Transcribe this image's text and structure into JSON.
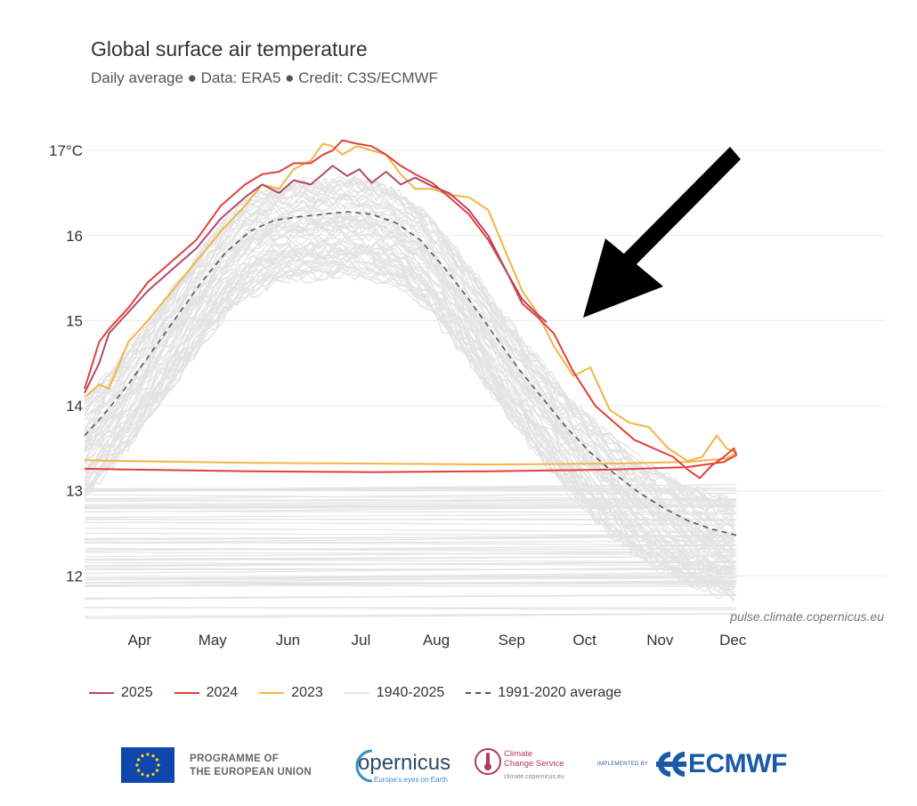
{
  "chart_data": {
    "type": "line",
    "title": "Global surface air temperature",
    "subtitle": "Daily average ● Data: ERA5 ● Credit: C3S/ECMWF",
    "xlabel": "",
    "ylabel": "",
    "x_tick_labels": [
      "Apr",
      "May",
      "Jun",
      "Jul",
      "Aug",
      "Sep",
      "Oct",
      "Nov",
      "Dec"
    ],
    "y_tick_labels": [
      "17°C",
      "16",
      "15",
      "14",
      "13",
      "12"
    ],
    "y_ticks": [
      17,
      16,
      15,
      14,
      13,
      12
    ],
    "ylim": [
      11.45,
      17.2
    ],
    "xlim_day_of_year": [
      82,
      355
    ],
    "grid": true,
    "legend_position": "bottom-left",
    "watermark": "pulse.climate.copernicus.eu",
    "series": [
      {
        "name": "2025",
        "color": "#b5476a",
        "points": [
          [
            82,
            14.15
          ],
          [
            88,
            14.5
          ],
          [
            92,
            14.85
          ],
          [
            100,
            15.1
          ],
          [
            108,
            15.35
          ],
          [
            118,
            15.6
          ],
          [
            128,
            15.85
          ],
          [
            138,
            16.2
          ],
          [
            148,
            16.45
          ],
          [
            155,
            16.6
          ],
          [
            162,
            16.5
          ],
          [
            168,
            16.65
          ],
          [
            175,
            16.6
          ],
          [
            180,
            16.72
          ],
          [
            184,
            16.82
          ],
          [
            190,
            16.7
          ],
          [
            195,
            16.78
          ],
          [
            200,
            16.62
          ],
          [
            206,
            16.75
          ],
          [
            212,
            16.6
          ],
          [
            218,
            16.68
          ],
          [
            225,
            16.58
          ],
          [
            232,
            16.5
          ],
          [
            240,
            16.3
          ],
          [
            248,
            16.0
          ],
          [
            256,
            15.55
          ],
          [
            262,
            15.25
          ],
          [
            268,
            15.08
          ],
          [
            272,
            14.98
          ]
        ]
      },
      {
        "name": "2024",
        "color": "#e0403c",
        "points": [
          [
            82,
            14.2
          ],
          [
            88,
            14.75
          ],
          [
            92,
            14.9
          ],
          [
            100,
            15.15
          ],
          [
            108,
            15.45
          ],
          [
            118,
            15.7
          ],
          [
            128,
            15.95
          ],
          [
            138,
            16.35
          ],
          [
            148,
            16.6
          ],
          [
            155,
            16.72
          ],
          [
            162,
            16.75
          ],
          [
            168,
            16.85
          ],
          [
            175,
            16.85
          ],
          [
            180,
            16.95
          ],
          [
            184,
            17.0
          ],
          [
            188,
            17.12
          ],
          [
            194,
            17.08
          ],
          [
            200,
            17.05
          ],
          [
            206,
            16.95
          ],
          [
            212,
            16.82
          ],
          [
            218,
            16.72
          ],
          [
            225,
            16.62
          ],
          [
            232,
            16.45
          ],
          [
            240,
            16.25
          ],
          [
            248,
            15.95
          ],
          [
            256,
            15.55
          ],
          [
            262,
            15.2
          ],
          [
            268,
            15.05
          ],
          [
            275,
            14.85
          ],
          [
            283,
            14.4
          ],
          [
            292,
            14.0
          ],
          [
            300,
            13.8
          ],
          [
            308,
            13.6
          ],
          [
            316,
            13.5
          ],
          [
            324,
            13.4
          ],
          [
            330,
            13.25
          ],
          [
            335,
            13.15
          ],
          [
            340,
            13.3
          ],
          [
            345,
            13.4
          ],
          [
            349,
            13.5
          ],
          [
            350,
            13.42
          ],
          [
            345,
            13.34
          ],
          [
            330,
            13.28
          ],
          [
            300,
            13.25
          ],
          [
            250,
            13.23
          ],
          [
            200,
            13.22
          ],
          [
            150,
            13.23
          ],
          [
            100,
            13.25
          ],
          [
            82,
            13.26
          ]
        ]
      },
      {
        "name": "2023",
        "color": "#f2b544",
        "points": [
          [
            82,
            14.1
          ],
          [
            88,
            14.25
          ],
          [
            92,
            14.2
          ],
          [
            100,
            14.75
          ],
          [
            108,
            15.0
          ],
          [
            118,
            15.35
          ],
          [
            128,
            15.7
          ],
          [
            138,
            16.05
          ],
          [
            148,
            16.35
          ],
          [
            155,
            16.6
          ],
          [
            162,
            16.55
          ],
          [
            168,
            16.78
          ],
          [
            175,
            16.88
          ],
          [
            180,
            17.08
          ],
          [
            184,
            17.05
          ],
          [
            188,
            16.95
          ],
          [
            194,
            17.05
          ],
          [
            200,
            17.0
          ],
          [
            206,
            16.95
          ],
          [
            212,
            16.72
          ],
          [
            218,
            16.55
          ],
          [
            225,
            16.55
          ],
          [
            232,
            16.48
          ],
          [
            240,
            16.45
          ],
          [
            248,
            16.3
          ],
          [
            256,
            15.75
          ],
          [
            262,
            15.35
          ],
          [
            268,
            15.1
          ],
          [
            275,
            14.7
          ],
          [
            283,
            14.35
          ],
          [
            290,
            14.45
          ],
          [
            298,
            13.95
          ],
          [
            306,
            13.8
          ],
          [
            314,
            13.75
          ],
          [
            322,
            13.5
          ],
          [
            330,
            13.35
          ],
          [
            336,
            13.4
          ],
          [
            342,
            13.65
          ],
          [
            346,
            13.5
          ],
          [
            350,
            13.45
          ],
          [
            346,
            13.38
          ],
          [
            330,
            13.34
          ],
          [
            300,
            13.32
          ],
          [
            250,
            13.31
          ],
          [
            200,
            13.32
          ],
          [
            150,
            13.33
          ],
          [
            100,
            13.35
          ],
          [
            82,
            13.36
          ]
        ]
      },
      {
        "name": "1940-2025",
        "color": "#e3e3e3",
        "points": []
      },
      {
        "name": "1991-2020 average",
        "color": "#555555",
        "dashed": true,
        "points": [
          [
            82,
            13.65
          ],
          [
            90,
            13.9
          ],
          [
            100,
            14.25
          ],
          [
            110,
            14.65
          ],
          [
            120,
            15.05
          ],
          [
            130,
            15.45
          ],
          [
            140,
            15.8
          ],
          [
            150,
            16.05
          ],
          [
            160,
            16.18
          ],
          [
            170,
            16.22
          ],
          [
            180,
            16.25
          ],
          [
            190,
            16.28
          ],
          [
            200,
            16.25
          ],
          [
            210,
            16.15
          ],
          [
            220,
            15.95
          ],
          [
            230,
            15.62
          ],
          [
            240,
            15.25
          ],
          [
            250,
            14.85
          ],
          [
            260,
            14.45
          ],
          [
            270,
            14.1
          ],
          [
            280,
            13.75
          ],
          [
            290,
            13.45
          ],
          [
            300,
            13.2
          ],
          [
            310,
            12.98
          ],
          [
            320,
            12.8
          ],
          [
            330,
            12.65
          ],
          [
            340,
            12.55
          ],
          [
            350,
            12.48
          ]
        ]
      }
    ]
  },
  "annotation": {
    "type": "arrow",
    "color": "#000000"
  },
  "footer": {
    "eu_line1": "PROGRAMME OF",
    "eu_line2": "THE EUROPEAN UNION",
    "copernicus_word": "opernicus",
    "copernicus_tagline": "Europe's eyes on Earth",
    "c3s_line1": "Climate",
    "c3s_line2": "Change Service",
    "c3s_url": "climate.copernicus.eu",
    "implemented_by": "IMPLEMENTED BY",
    "ecmwf": "ECMWF"
  }
}
